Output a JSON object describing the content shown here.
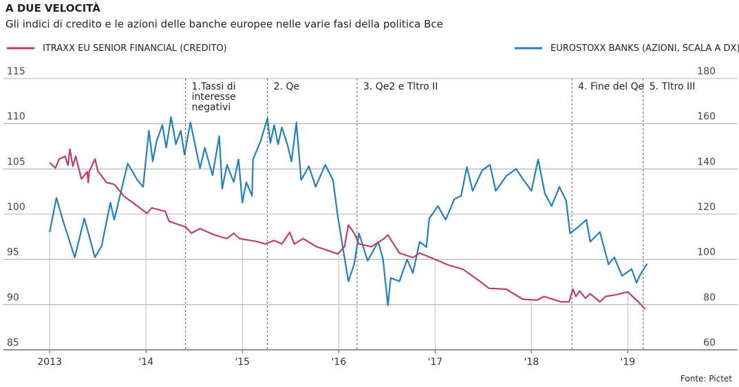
{
  "chart_data": {
    "type": "line",
    "title": "A DUE VELOCITÀ",
    "subtitle": "Gli indici di credito e le azioni delle banche europee nelle varie fasi della politica Bce",
    "source": "Fonte: Pictet",
    "xlim": [
      2012.52,
      2020.14
    ],
    "xticks": [
      2013,
      {
        "value": 2014,
        "label": "'14"
      },
      {
        "value": 2015,
        "label": "'15"
      },
      {
        "value": 2016,
        "label": "'16"
      },
      {
        "value": 2017,
        "label": "'17"
      },
      {
        "value": 2018,
        "label": "'18"
      },
      {
        "value": 2019,
        "label": "'19"
      }
    ],
    "ylim": [
      85,
      115
    ],
    "yticks": [
      85,
      90,
      95,
      100,
      105,
      110,
      115
    ],
    "y2lim": [
      60,
      180
    ],
    "y2ticks": [
      60,
      80,
      100,
      120,
      140,
      160,
      180
    ],
    "grid": true,
    "series": [
      {
        "name": "ITRAXX EU SENIOR FINANCIAL (CREDITO)",
        "color": "#c23a6e",
        "axis": "y",
        "x": [
          2013.0,
          2013.06,
          2013.1,
          2013.16,
          2013.19,
          2013.21,
          2013.24,
          2013.27,
          2013.33,
          2013.39,
          2013.4,
          2013.41,
          2013.47,
          2013.5,
          2013.59,
          2013.67,
          2013.77,
          2013.91,
          2014.01,
          2014.06,
          2014.2,
          2014.24,
          2014.41,
          2014.47,
          2014.56,
          2014.71,
          2014.84,
          2014.91,
          2014.97,
          2015.14,
          2015.24,
          2015.33,
          2015.41,
          2015.49,
          2015.54,
          2015.63,
          2015.77,
          2015.91,
          2015.99,
          2016.06,
          2016.1,
          2016.16,
          2016.21,
          2016.34,
          2016.47,
          2016.51,
          2016.63,
          2016.77,
          2016.84,
          2017.0,
          2017.13,
          2017.29,
          2017.45,
          2017.56,
          2017.74,
          2017.91,
          2018.06,
          2018.13,
          2018.31,
          2018.39,
          2018.43,
          2018.46,
          2018.5,
          2018.56,
          2018.61,
          2018.71,
          2018.77,
          2018.88,
          2019.0,
          2019.11,
          2019.18
        ],
        "values": [
          105.7,
          105.1,
          106.1,
          106.4,
          105.4,
          107.2,
          105.3,
          106.4,
          103.9,
          104.7,
          103.5,
          104.7,
          106.1,
          104.8,
          103.5,
          103.3,
          102.0,
          100.9,
          100.1,
          100.7,
          100.3,
          99.2,
          98.6,
          97.9,
          98.4,
          97.7,
          97.3,
          97.9,
          97.3,
          97.0,
          96.7,
          97.1,
          96.7,
          98.0,
          96.7,
          97.3,
          96.4,
          95.9,
          95.6,
          96.4,
          98.8,
          97.9,
          96.7,
          96.4,
          97.3,
          97.7,
          95.7,
          95.2,
          95.7,
          95.0,
          94.4,
          93.9,
          92.7,
          91.8,
          91.7,
          90.6,
          90.5,
          90.9,
          90.3,
          90.3,
          91.7,
          90.9,
          91.5,
          90.7,
          91.2,
          90.3,
          90.9,
          91.1,
          91.4,
          90.3,
          89.5
        ]
      },
      {
        "name": "EUROSTOXX BANKS (AZIONI, SCALA A DX)",
        "color": "#1f7fc4",
        "axis": "y2",
        "x": [
          2013.0,
          2013.07,
          2013.14,
          2013.26,
          2013.36,
          2013.47,
          2013.54,
          2013.63,
          2013.67,
          2013.81,
          2013.91,
          2013.97,
          2014.03,
          2014.07,
          2014.11,
          2014.17,
          2014.21,
          2014.26,
          2014.31,
          2014.36,
          2014.4,
          2014.46,
          2014.56,
          2014.61,
          2014.69,
          2014.76,
          2014.79,
          2014.84,
          2014.91,
          2014.96,
          2015.0,
          2015.04,
          2015.1,
          2015.11,
          2015.19,
          2015.26,
          2015.29,
          2015.33,
          2015.37,
          2015.41,
          2015.47,
          2015.51,
          2015.56,
          2015.61,
          2015.69,
          2015.76,
          2015.86,
          2015.94,
          2015.99,
          2016.04,
          2016.1,
          2016.16,
          2016.21,
          2016.3,
          2016.41,
          2016.46,
          2016.51,
          2016.54,
          2016.63,
          2016.71,
          2016.77,
          2016.84,
          2016.91,
          2016.94,
          2017.03,
          2017.11,
          2017.2,
          2017.27,
          2017.33,
          2017.39,
          2017.49,
          2017.57,
          2017.63,
          2017.74,
          2017.84,
          2017.91,
          2018.0,
          2018.07,
          2018.14,
          2018.21,
          2018.29,
          2018.36,
          2018.4,
          2018.49,
          2018.57,
          2018.61,
          2018.71,
          2018.8,
          2018.86,
          2018.94,
          2019.04,
          2019.09,
          2019.13,
          2019.2
        ],
        "values": [
          112.1,
          127.2,
          116.9,
          100.9,
          118.1,
          100.9,
          106.0,
          125.1,
          117.5,
          142.4,
          135.1,
          132.1,
          156.9,
          143.3,
          152.4,
          159.4,
          149.4,
          163.0,
          150.9,
          156.9,
          146.3,
          160.6,
          140.3,
          149.4,
          137.2,
          154.5,
          131.2,
          141.8,
          134.2,
          144.2,
          125.1,
          134.2,
          128.1,
          144.2,
          152.4,
          162.4,
          151.5,
          159.4,
          150.9,
          158.4,
          150.3,
          143.3,
          160.6,
          135.1,
          141.2,
          132.1,
          141.8,
          135.1,
          119.1,
          106.0,
          90.3,
          97.8,
          111.5,
          99.4,
          107.8,
          100.0,
          79.7,
          91.8,
          90.3,
          100.0,
          93.9,
          107.8,
          105.4,
          118.1,
          123.6,
          117.5,
          126.6,
          128.1,
          140.8,
          130.3,
          139.4,
          141.8,
          130.3,
          136.9,
          140.0,
          135.7,
          130.3,
          144.2,
          129.1,
          123.6,
          132.1,
          126.0,
          111.5,
          114.5,
          117.5,
          107.8,
          112.1,
          97.8,
          100.9,
          92.7,
          95.7,
          89.7,
          93.3,
          98.1
        ]
      }
    ],
    "annotations": [
      {
        "x": 2014.41,
        "lines": [
          "1.Tassi di",
          "interesse",
          "negativi"
        ]
      },
      {
        "x": 2015.26,
        "lines": [
          "2. Qe"
        ]
      },
      {
        "x": 2016.19,
        "lines": [
          "3. Qe2  e Tltro II"
        ]
      },
      {
        "x": 2018.42,
        "lines": [
          "4. Fine del Qe"
        ]
      },
      {
        "x": 2019.16,
        "lines": [
          "5. Tltro III"
        ]
      }
    ]
  }
}
